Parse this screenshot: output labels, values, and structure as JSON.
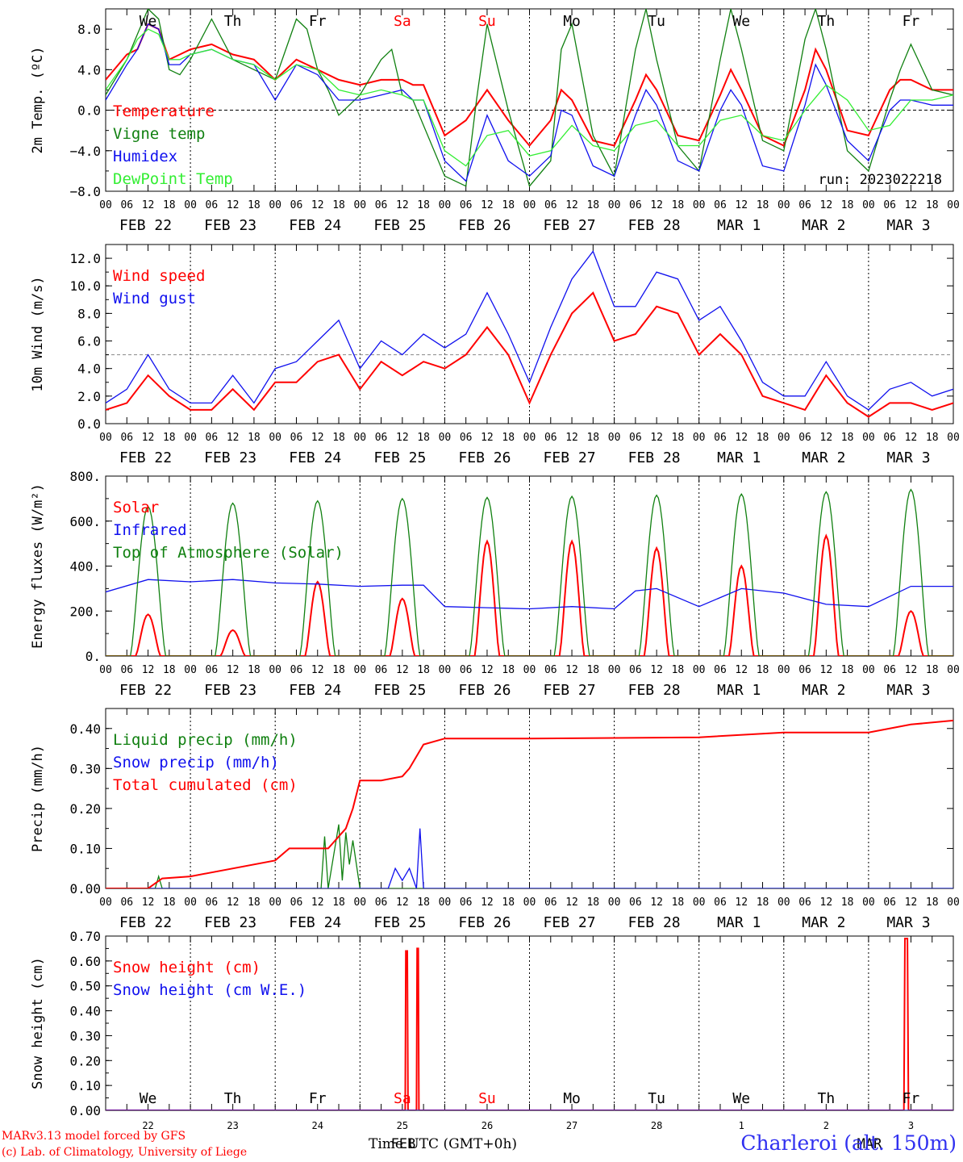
{
  "run_label": "run: 2023022218",
  "credits": {
    "line1": "MARv3.13 model forced by GFS",
    "line2": "(c) Lab. of Climatology, University of Liege"
  },
  "station": "Charleroi (alt. 150m)",
  "x_axis_title": "Time UTC (GMT+0h)",
  "days": [
    {
      "weekday": "We",
      "date": "FEB 22",
      "day_num": "22",
      "weekend": false
    },
    {
      "weekday": "Th",
      "date": "FEB 23",
      "day_num": "23",
      "weekend": false
    },
    {
      "weekday": "Fr",
      "date": "FEB 24",
      "day_num": "24",
      "weekend": false
    },
    {
      "weekday": "Sa",
      "date": "FEB 25",
      "day_num": "25",
      "weekend": true
    },
    {
      "weekday": "Su",
      "date": "FEB 26",
      "day_num": "26",
      "weekend": true
    },
    {
      "weekday": "Mo",
      "date": "FEB 27",
      "day_num": "27",
      "weekend": false
    },
    {
      "weekday": "Tu",
      "date": "FEB 28",
      "day_num": "28",
      "weekend": false
    },
    {
      "weekday": "We",
      "date": "MAR  1",
      "day_num": "1",
      "weekend": false
    },
    {
      "weekday": "Th",
      "date": "MAR  2",
      "day_num": "2",
      "weekend": false
    },
    {
      "weekday": "Fr",
      "date": "MAR  3",
      "day_num": "3",
      "weekend": false
    }
  ],
  "last_panel_month_label": "FEB",
  "last_panel_month_label_2": "MAR",
  "hour_ticks": [
    "00",
    "06",
    "12",
    "18"
  ],
  "colors": {
    "red": "#ff0000",
    "green": "#108010",
    "blue": "#1010ee",
    "lightgreen": "#33ee33",
    "weekend": "#ff0000",
    "station": "#3030f0"
  },
  "chart_data": [
    {
      "id": "temp",
      "type": "line",
      "ylabel": "2m Temp. (ºC)",
      "ylim": [
        -8,
        10
      ],
      "yticks": [
        -8,
        -4,
        0,
        4,
        8
      ],
      "ytick_labels": [
        "−8.0",
        "−4.0",
        "0.0",
        "4.0",
        "8.0"
      ],
      "ref_line": 0,
      "x_unit": "hours since FEB 22 00 UTC",
      "series": [
        {
          "name": "Temperature",
          "color": "red",
          "x": [
            0,
            6,
            9,
            12,
            15,
            18,
            21,
            24,
            30,
            36,
            42,
            48,
            54,
            60,
            66,
            72,
            78,
            84,
            87,
            90,
            96,
            102,
            108,
            114,
            120,
            126,
            129,
            132,
            138,
            144,
            150,
            153,
            156,
            162,
            168,
            174,
            177,
            180,
            186,
            192,
            198,
            201,
            204,
            210,
            216,
            222,
            225,
            228,
            234,
            240
          ],
          "y": [
            3.0,
            5.5,
            6.0,
            8.5,
            8.0,
            5.0,
            5.5,
            6.0,
            6.5,
            5.5,
            5.0,
            3.0,
            5.0,
            4.0,
            3.0,
            2.5,
            3.0,
            3.0,
            2.5,
            2.5,
            -2.5,
            -1.0,
            2.0,
            -1.0,
            -3.5,
            -1.0,
            2.0,
            1.0,
            -3.0,
            -3.5,
            1.0,
            3.5,
            2.0,
            -2.5,
            -3.0,
            1.5,
            4.0,
            2.0,
            -2.5,
            -3.5,
            2.0,
            6.0,
            4.0,
            -2.0,
            -2.5,
            2.0,
            3.0,
            3.0,
            2.0,
            2.0
          ]
        },
        {
          "name": "Vigne temp",
          "color": "green",
          "x": [
            0,
            6,
            9,
            12,
            15,
            18,
            21,
            24,
            30,
            36,
            42,
            48,
            54,
            57,
            60,
            63,
            66,
            72,
            78,
            81,
            84,
            87,
            90,
            96,
            102,
            105,
            108,
            114,
            120,
            126,
            129,
            132,
            138,
            144,
            150,
            153,
            156,
            162,
            168,
            174,
            177,
            180,
            186,
            192,
            198,
            201,
            204,
            210,
            216,
            222,
            225,
            228,
            234,
            240
          ],
          "y": [
            1.5,
            5.0,
            7.5,
            10.0,
            9.0,
            4.0,
            3.5,
            5.0,
            9.0,
            5.0,
            4.0,
            3.0,
            9.0,
            8.0,
            4.0,
            2.0,
            -0.5,
            1.5,
            5.0,
            6.0,
            1.5,
            1.0,
            -1.5,
            -6.5,
            -7.5,
            1.0,
            8.5,
            0.0,
            -7.5,
            -5.0,
            6.0,
            8.5,
            -2.5,
            -6.5,
            6.0,
            10.0,
            5.0,
            -3.5,
            -6.0,
            5.0,
            10.0,
            6.0,
            -3.0,
            -4.0,
            7.0,
            10.0,
            6.0,
            -4.0,
            -6.0,
            1.0,
            4.0,
            6.5,
            2.0,
            1.5
          ]
        },
        {
          "name": "Humidex",
          "color": "blue",
          "x": [
            0,
            6,
            9,
            12,
            15,
            18,
            21,
            24,
            30,
            36,
            42,
            48,
            54,
            60,
            66,
            72,
            78,
            84,
            87,
            90,
            96,
            102,
            108,
            114,
            120,
            126,
            129,
            132,
            138,
            144,
            150,
            153,
            156,
            162,
            168,
            174,
            177,
            180,
            186,
            192,
            198,
            201,
            204,
            210,
            216,
            222,
            225,
            228,
            234,
            240
          ],
          "y": [
            1.0,
            4.5,
            6.0,
            8.5,
            8.0,
            4.5,
            4.5,
            5.5,
            6.0,
            5.0,
            4.5,
            1.0,
            4.5,
            3.5,
            1.0,
            1.0,
            1.5,
            2.0,
            1.0,
            1.0,
            -5.0,
            -7.0,
            -0.5,
            -5.0,
            -6.5,
            -4.5,
            0.0,
            -0.5,
            -5.5,
            -6.5,
            -0.5,
            2.0,
            0.5,
            -5.0,
            -6.0,
            0.0,
            2.0,
            0.5,
            -5.5,
            -6.0,
            0.5,
            4.5,
            2.5,
            -3.0,
            -5.0,
            0.0,
            1.0,
            1.0,
            0.5,
            0.5
          ]
        },
        {
          "name": "DewPoint Temp",
          "color": "lightgreen",
          "x": [
            0,
            6,
            9,
            12,
            15,
            18,
            21,
            24,
            30,
            36,
            42,
            48,
            54,
            60,
            66,
            72,
            78,
            84,
            87,
            90,
            96,
            102,
            108,
            114,
            120,
            126,
            132,
            138,
            144,
            150,
            156,
            162,
            168,
            174,
            180,
            186,
            192,
            198,
            204,
            210,
            216,
            222,
            228,
            234,
            240
          ],
          "y": [
            2.0,
            5.0,
            7.0,
            8.0,
            7.5,
            5.0,
            5.0,
            5.5,
            6.0,
            5.0,
            4.5,
            3.0,
            4.5,
            4.0,
            2.0,
            1.5,
            2.0,
            1.5,
            1.0,
            1.0,
            -4.0,
            -5.5,
            -2.5,
            -2.0,
            -4.5,
            -4.0,
            -1.5,
            -3.5,
            -4.0,
            -1.5,
            -1.0,
            -3.5,
            -3.5,
            -1.0,
            -0.5,
            -2.5,
            -3.0,
            0.0,
            2.5,
            1.0,
            -2.0,
            -1.5,
            1.0,
            1.0,
            1.5
          ]
        }
      ]
    },
    {
      "id": "wind",
      "type": "line",
      "ylabel": "10m Wind (m/s)",
      "ylim": [
        0,
        13
      ],
      "yticks": [
        0,
        2,
        4,
        6,
        8,
        10,
        12
      ],
      "ytick_labels": [
        "0.0",
        "2.0",
        "4.0",
        "6.0",
        "8.0",
        "10.0",
        "12.0"
      ],
      "ref_line": 5,
      "x_unit": "hours since FEB 22 00 UTC",
      "series": [
        {
          "name": "Wind speed",
          "color": "red",
          "x": [
            0,
            6,
            12,
            18,
            24,
            30,
            36,
            42,
            48,
            54,
            60,
            66,
            72,
            78,
            84,
            90,
            96,
            102,
            108,
            114,
            120,
            126,
            132,
            138,
            144,
            150,
            156,
            162,
            168,
            174,
            180,
            186,
            192,
            198,
            204,
            210,
            216,
            222,
            228,
            234,
            240
          ],
          "y": [
            1.0,
            1.5,
            3.5,
            2.0,
            1.0,
            1.0,
            2.5,
            1.0,
            3.0,
            3.0,
            4.5,
            5.0,
            2.5,
            4.5,
            3.5,
            4.5,
            4.0,
            5.0,
            7.0,
            5.0,
            1.5,
            5.0,
            8.0,
            9.5,
            6.0,
            6.5,
            8.5,
            8.0,
            5.0,
            6.5,
            5.0,
            2.0,
            1.5,
            1.0,
            3.5,
            1.5,
            0.5,
            1.5,
            1.5,
            1.0,
            1.5
          ]
        },
        {
          "name": "Wind gust",
          "color": "blue",
          "x": [
            0,
            6,
            12,
            18,
            24,
            30,
            36,
            42,
            48,
            54,
            60,
            66,
            72,
            78,
            84,
            90,
            96,
            102,
            108,
            114,
            120,
            126,
            132,
            138,
            144,
            150,
            156,
            162,
            168,
            174,
            180,
            186,
            192,
            198,
            204,
            210,
            216,
            222,
            228,
            234,
            240
          ],
          "y": [
            1.5,
            2.5,
            5.0,
            2.5,
            1.5,
            1.5,
            3.5,
            1.5,
            4.0,
            4.5,
            6.0,
            7.5,
            4.0,
            6.0,
            5.0,
            6.5,
            5.5,
            6.5,
            9.5,
            6.5,
            3.0,
            7.0,
            10.5,
            12.5,
            8.5,
            8.5,
            11.0,
            10.5,
            7.5,
            8.5,
            6.0,
            3.0,
            2.0,
            2.0,
            4.5,
            2.0,
            1.0,
            2.5,
            3.0,
            2.0,
            2.5
          ]
        }
      ]
    },
    {
      "id": "energy",
      "type": "line",
      "ylabel": "Energy fluxes (W/m²)",
      "ylim": [
        0,
        800
      ],
      "yticks": [
        0,
        200,
        400,
        600,
        800
      ],
      "ytick_labels": [
        "0.",
        "200.",
        "400.",
        "600.",
        "800."
      ],
      "x_unit": "hours since FEB 22 00 UTC",
      "series": [
        {
          "name": "Solar",
          "color": "red",
          "daily_peak": [
            185,
            115,
            330,
            255,
            510,
            510,
            480,
            400,
            535,
            200
          ]
        },
        {
          "name": "Infrared",
          "color": "blue",
          "x": [
            0,
            12,
            24,
            36,
            48,
            60,
            72,
            84,
            90,
            96,
            108,
            120,
            132,
            144,
            150,
            156,
            168,
            180,
            192,
            204,
            216,
            228,
            240
          ],
          "y": [
            285,
            340,
            330,
            340,
            325,
            320,
            310,
            315,
            315,
            220,
            215,
            210,
            220,
            210,
            290,
            300,
            220,
            300,
            280,
            230,
            220,
            310,
            310
          ]
        },
        {
          "name": "Top of Atmosphere (Solar)",
          "color": "green",
          "daily_peak": [
            665,
            680,
            690,
            700,
            705,
            710,
            715,
            720,
            730,
            740
          ]
        }
      ]
    },
    {
      "id": "precip",
      "type": "line",
      "ylabel": "Precip (mm/h)",
      "ylim": [
        0,
        0.45
      ],
      "yticks": [
        0,
        0.1,
        0.2,
        0.3,
        0.4
      ],
      "ytick_labels": [
        "0.00",
        "0.10",
        "0.20",
        "0.30",
        "0.40"
      ],
      "x_unit": "hours since FEB 22 00 UTC",
      "series": [
        {
          "name": "Liquid precip (mm/h)",
          "color": "green",
          "x": [
            0,
            14,
            15,
            16,
            48,
            61,
            62,
            63,
            66,
            67,
            68,
            69,
            70,
            72,
            240
          ],
          "y": [
            0,
            0,
            0.03,
            0,
            0,
            0,
            0.13,
            0,
            0.16,
            0.02,
            0.14,
            0.06,
            0.12,
            0,
            0
          ]
        },
        {
          "name": "Snow precip (mm/h)",
          "color": "blue",
          "x": [
            0,
            80,
            82,
            84,
            86,
            88,
            89,
            90,
            240
          ],
          "y": [
            0,
            0,
            0.05,
            0.02,
            0.05,
            0,
            0.15,
            0,
            0
          ]
        },
        {
          "name": "Total cumulated (cm)",
          "color": "red",
          "x": [
            0,
            12,
            16,
            24,
            48,
            52,
            63,
            68,
            70,
            72,
            78,
            84,
            86,
            90,
            96,
            120,
            168,
            192,
            216,
            228,
            240
          ],
          "y": [
            0,
            0,
            0.025,
            0.03,
            0.07,
            0.1,
            0.1,
            0.15,
            0.2,
            0.27,
            0.27,
            0.28,
            0.3,
            0.36,
            0.375,
            0.375,
            0.378,
            0.39,
            0.39,
            0.41,
            0.42
          ]
        }
      ]
    },
    {
      "id": "snow",
      "type": "line",
      "ylabel": "Snow height (cm)",
      "ylim": [
        0,
        0.7
      ],
      "yticks": [
        0,
        0.1,
        0.2,
        0.3,
        0.4,
        0.5,
        0.6,
        0.7
      ],
      "ytick_labels": [
        "0.00",
        "0.10",
        "0.20",
        "0.30",
        "0.40",
        "0.50",
        "0.60",
        "0.70"
      ],
      "x_unit": "hours since FEB 22 00 UTC",
      "series": [
        {
          "name": "Snow height (cm)",
          "color": "red",
          "x": [
            0,
            84.8,
            85,
            85.4,
            85.6,
            88,
            88.2,
            88.5,
            88.7,
            226,
            226.3,
            227,
            227.3,
            240
          ],
          "y": [
            0,
            0,
            0.64,
            0.64,
            0,
            0,
            0.65,
            0.65,
            0,
            0,
            0.69,
            0.69,
            0,
            0
          ]
        },
        {
          "name": "Snow height (cm W.E.)",
          "color": "blue",
          "x": [
            0,
            240
          ],
          "y": [
            0,
            0
          ]
        }
      ]
    }
  ]
}
